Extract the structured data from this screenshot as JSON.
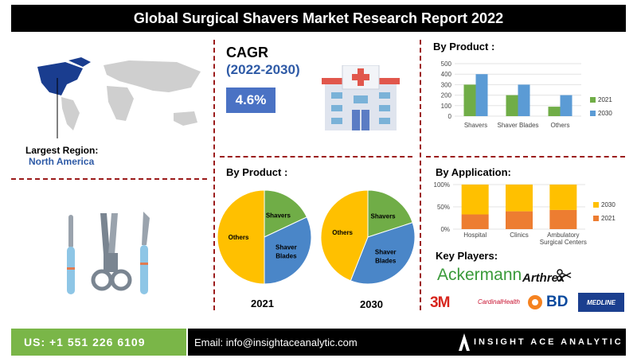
{
  "title": "Global Surgical Shavers Market Research Report 2022",
  "region": {
    "label": "Largest Region:",
    "value": "North America"
  },
  "cagr": {
    "label": "CAGR",
    "period": "(2022-2030)",
    "value": "4.6%"
  },
  "sections": {
    "by_product_bar": "By Product :",
    "by_product_pie": "By Product :",
    "by_application": "By Application:",
    "key_players": "Key Players:"
  },
  "key_players": [
    "Ackermann",
    "Arthrex",
    "3M",
    "CardinalHealth",
    "BD",
    "MEDLINE"
  ],
  "footer": {
    "phone": "US: +1 551 226 6109",
    "email": "Email: info@insightaceanalytic.com",
    "brand": "INSIGHT ACE ANALYTIC"
  },
  "colors": {
    "series_2021": "#70ad47",
    "series_2030": "#5b9bd5",
    "app_2021": "#ed7d31",
    "app_2030": "#ffc000",
    "pie_shavers": "#70ad47",
    "pie_blades": "#4a86c8",
    "pie_others": "#ffc000"
  },
  "chart_data": [
    {
      "type": "bar",
      "categories": [
        "Shavers",
        "Shaver Blades",
        "Others"
      ],
      "series": [
        {
          "name": "2021",
          "values": [
            300,
            200,
            90
          ]
        },
        {
          "name": "2030",
          "values": [
            400,
            300,
            200
          ]
        }
      ],
      "ylim": [
        0,
        500
      ],
      "yticks": [
        "0",
        "100",
        "200",
        "300",
        "400",
        "500"
      ],
      "legend": "right"
    },
    {
      "type": "bar",
      "stacked": true,
      "categories": [
        "Hospital",
        "Clinics",
        "Ambulatory Surgical Centers"
      ],
      "series": [
        {
          "name": "2021",
          "values": [
            33,
            40,
            43
          ]
        },
        {
          "name": "2030",
          "values": [
            67,
            60,
            57
          ]
        }
      ],
      "ylim": [
        0,
        100
      ],
      "yticks": [
        "0%",
        "50%",
        "100%"
      ],
      "legend": "right"
    },
    {
      "type": "pie",
      "year": "2021",
      "slices": [
        {
          "label": "Shavers",
          "value": 18
        },
        {
          "label": "Shaver Blades",
          "value": 32
        },
        {
          "label": "Others",
          "value": 50
        }
      ]
    },
    {
      "type": "pie",
      "year": "2030",
      "slices": [
        {
          "label": "Shavers",
          "value": 20
        },
        {
          "label": "Shaver Blades",
          "value": 36
        },
        {
          "label": "Others",
          "value": 44
        }
      ]
    }
  ]
}
